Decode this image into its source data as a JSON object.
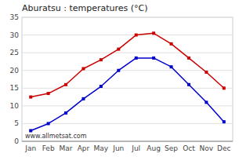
{
  "chart_data": {
    "type": "line",
    "title": "Aburatsu : temperatures (°C)",
    "categories": [
      "Jan",
      "Feb",
      "Mar",
      "Apr",
      "May",
      "Jun",
      "Jul",
      "Aug",
      "Sep",
      "Oct",
      "Nov",
      "Dec"
    ],
    "series": [
      {
        "color": "#cc0000",
        "marker": "square",
        "values": [
          12.5,
          13.5,
          16.0,
          20.5,
          23.0,
          26.0,
          30.0,
          30.5,
          27.5,
          23.5,
          19.5,
          15.0
        ]
      },
      {
        "color": "#0000cc",
        "marker": "square",
        "values": [
          3.0,
          5.0,
          8.0,
          12.0,
          15.5,
          20.0,
          23.5,
          23.5,
          21.0,
          16.0,
          11.0,
          5.5
        ]
      }
    ],
    "ylim": [
      0,
      35
    ],
    "yticks": [
      0,
      5,
      10,
      15,
      20,
      25,
      30,
      35
    ],
    "grid": true,
    "annotations": [
      "www.allmetsat.com"
    ]
  }
}
